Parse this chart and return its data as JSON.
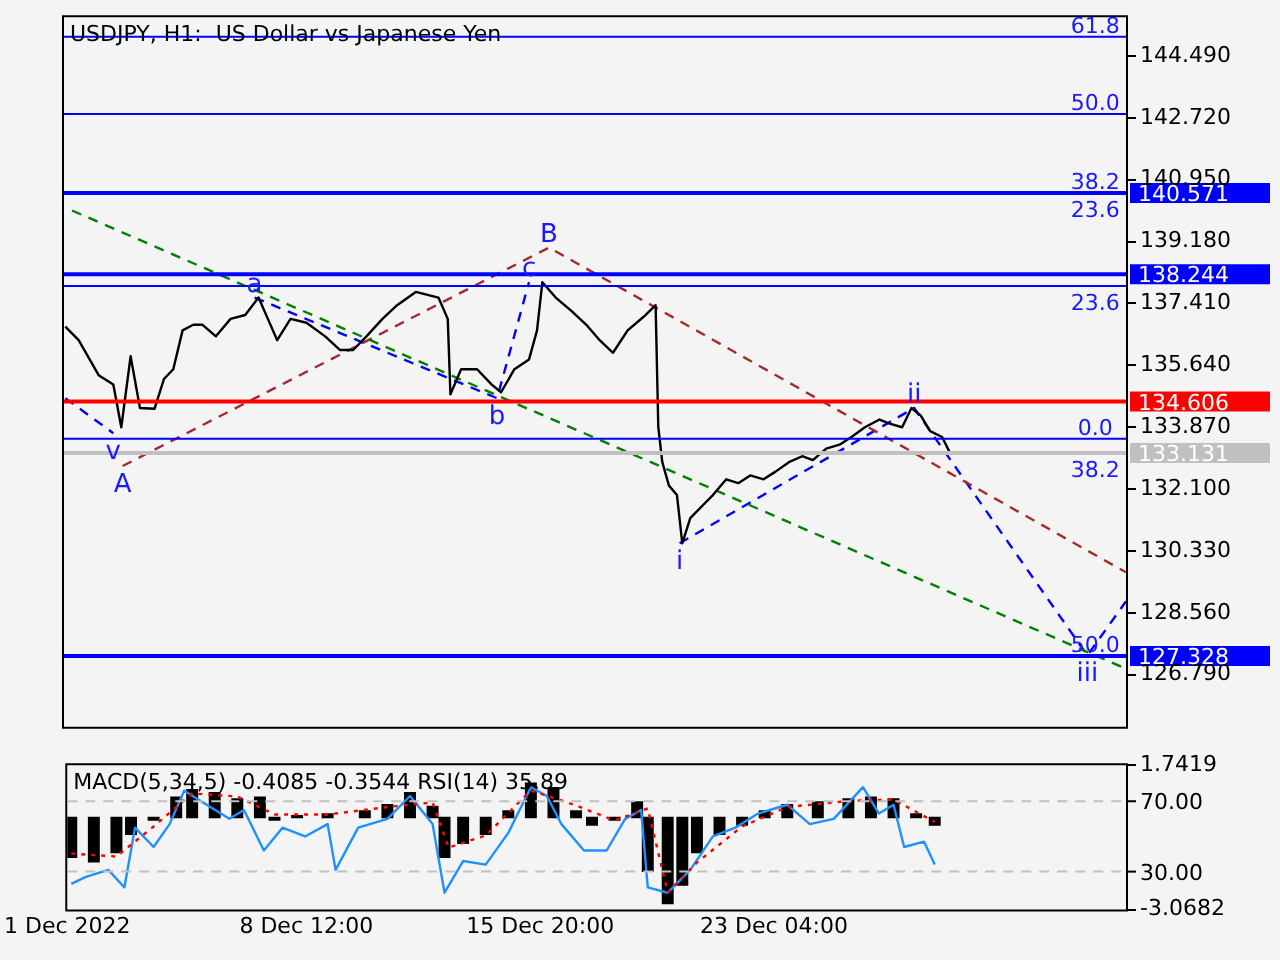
{
  "chart_data": [
    {
      "type": "line",
      "title": "USDJPY, H1:  US Dollar vs Japanese Yen",
      "xlim": [
        "2022-12-01T00:00",
        "2023-01-03T05:00"
      ],
      "ylim": [
        125.3,
        145.6
      ],
      "yticks": [
        {
          "value": 144.49,
          "label": "144.490"
        },
        {
          "value": 142.72,
          "label": "142.720"
        },
        {
          "value": 140.95,
          "label": "140.950"
        },
        {
          "value": 139.18,
          "label": "139.180"
        },
        {
          "value": 137.41,
          "label": "137.410"
        },
        {
          "value": 135.64,
          "label": "135.640"
        },
        {
          "value": 133.87,
          "label": "133.870"
        },
        {
          "value": 132.1,
          "label": "132.100"
        },
        {
          "value": 130.33,
          "label": "130.330"
        },
        {
          "value": 128.56,
          "label": "128.560"
        },
        {
          "value": 126.79,
          "label": "126.790"
        }
      ],
      "tick_labels": "y",
      "series": [
        {
          "color": "#000000",
          "x": [
            "2022-12-01T01:00",
            "2022-12-01T11:00",
            "2022-12-02T02:00",
            "2022-12-02T13:00",
            "2022-12-02T19:00",
            "2022-12-03T02:00",
            "2022-12-03T09:00",
            "2022-12-03T20:00",
            "2022-12-04T03:00",
            "2022-12-04T10:00",
            "2022-12-04T17:00",
            "2022-12-05T01:00",
            "2022-12-05T08:00",
            "2022-12-05T18:00",
            "2022-12-06T05:00",
            "2022-12-06T16:00",
            "2022-12-07T02:00",
            "2022-12-07T09:00",
            "2022-12-07T16:00",
            "2022-12-08T02:00",
            "2022-12-08T14:00",
            "2022-12-09T04:00",
            "2022-12-09T15:00",
            "2022-12-10T01:00",
            "2022-12-10T11:00",
            "2022-12-10T23:00",
            "2022-12-11T10:00",
            "2022-12-12T00:00",
            "2022-12-12T17:00",
            "2022-12-13T00:00",
            "2022-12-13T02:00",
            "2022-12-13T10:00",
            "2022-12-13T22:00",
            "2022-12-14T09:00",
            "2022-12-14T16:00",
            "2022-12-15T02:00",
            "2022-12-15T13:00",
            "2022-12-15T19:00",
            "2022-12-15T23:00",
            "2022-12-16T09:00",
            "2022-12-16T21:00",
            "2022-12-17T08:00",
            "2022-12-17T18:00",
            "2022-12-18T04:00",
            "2022-12-18T15:00",
            "2022-12-19T03:00",
            "2022-12-19T12:00",
            "2022-12-19T14:00",
            "2022-12-19T17:00",
            "2022-12-19T22:00",
            "2022-12-20T04:00",
            "2022-12-20T08:00",
            "2022-12-20T14:00",
            "2022-12-21T00:00",
            "2022-12-21T07:00",
            "2022-12-21T17:00",
            "2022-12-22T02:00",
            "2022-12-22T11:00",
            "2022-12-22T21:00",
            "2022-12-23T06:00",
            "2022-12-23T16:00",
            "2022-12-24T02:00",
            "2022-12-24T10:00",
            "2022-12-24T20:00",
            "2022-12-25T06:00",
            "2022-12-25T15:00",
            "2022-12-26T01:00",
            "2022-12-26T12:00",
            "2022-12-26T19:00",
            "2022-12-27T05:00",
            "2022-12-27T12:00",
            "2022-12-27T19:00",
            "2022-12-28T02:00",
            "2022-12-28T11:00",
            "2022-12-28T17:00"
          ],
          "values": [
            136.75,
            136.36,
            135.36,
            135.09,
            133.87,
            135.9,
            134.42,
            134.4,
            135.25,
            135.53,
            136.64,
            136.8,
            136.8,
            136.47,
            136.97,
            137.08,
            137.58,
            136.97,
            136.36,
            136.97,
            136.86,
            136.47,
            136.08,
            136.08,
            136.47,
            136.97,
            137.36,
            137.74,
            137.58,
            136.97,
            134.81,
            135.53,
            135.53,
            135.09,
            134.87,
            135.53,
            135.81,
            136.64,
            138.02,
            137.58,
            137.19,
            136.8,
            136.36,
            136.0,
            136.64,
            137.03,
            137.36,
            133.87,
            132.87,
            132.2,
            131.93,
            130.55,
            131.27,
            131.66,
            131.93,
            132.38,
            132.27,
            132.49,
            132.38,
            132.6,
            132.87,
            133.04,
            132.93,
            133.26,
            133.37,
            133.59,
            133.87,
            134.09,
            133.98,
            133.87,
            134.42,
            134.2,
            133.76,
            133.59,
            133.13
          ]
        },
        {
          "color": "#008000",
          "line_style": "dashed",
          "x": [
            "2022-12-01T06:00",
            "2023-01-03T05:00"
          ],
          "values": [
            140.07,
            126.96
          ]
        },
        {
          "color": "#a52a2a",
          "line_style": "dashed",
          "x": [
            "2022-12-02T20:00",
            "2022-12-16T04:00",
            "2023-01-03T05:00"
          ],
          "values": [
            132.76,
            139.01,
            129.72
          ]
        },
        {
          "color": "#0000ff",
          "line_style": "dashed",
          "x": [
            "2022-12-01T01:00",
            "2022-12-02T13:00",
            "2022-12-04T13:00",
            "2022-12-06T23:00",
            "2022-12-14T13:00",
            "2022-12-15T13:00",
            "2022-12-18T18:00",
            "2022-12-20T06:00",
            "2022-12-27T14:00",
            "2023-01-02T00:00",
            "2023-01-03T05:00"
          ],
          "values": [
            134.7,
            133.7,
            null,
            137.58,
            134.7,
            138.02,
            null,
            130.55,
            134.42,
            127.34,
            128.89
          ]
        }
      ],
      "ref_lines": [
        {
          "axis": "y",
          "value": 145.04,
          "color": "#0000ff"
        },
        {
          "axis": "y",
          "value": 142.83,
          "color": "#0000ff"
        },
        {
          "axis": "y",
          "value": 140.571,
          "label": "140.571",
          "color": "#0000ff"
        },
        {
          "axis": "y",
          "value": 138.244,
          "label": "138.244",
          "color": "#0000ff"
        },
        {
          "axis": "y",
          "value": 137.91,
          "color": "#0000ff"
        },
        {
          "axis": "y",
          "value": 134.606,
          "label": "134.606",
          "color": "#ff0000"
        },
        {
          "axis": "y",
          "value": 133.54,
          "color": "#0000ff"
        },
        {
          "axis": "y",
          "value": 133.131,
          "label": "133.131",
          "color": "#c0c0c0"
        },
        {
          "axis": "y",
          "value": 127.328,
          "label": "127.328",
          "color": "#0000ff"
        }
      ],
      "annotations": [
        {
          "text": "61.8",
          "x": "2023-01-02T06:00",
          "y": 145.04
        },
        {
          "text": "50.0",
          "x": "2023-01-02T06:00",
          "y": 142.83
        },
        {
          "text": "38.2",
          "x": "2023-01-02T06:00",
          "y": 140.571
        },
        {
          "text": "23.6",
          "x": "2023-01-02T06:00",
          "y": 140.571
        },
        {
          "text": "23.6",
          "x": "2023-01-02T06:00",
          "y": 137.91
        },
        {
          "text": "0.0",
          "x": "2023-01-02T06:00",
          "y": 133.54
        },
        {
          "text": "38.2",
          "x": "2023-01-02T06:00",
          "y": 133.131
        },
        {
          "text": "50.0",
          "x": "2023-01-02T06:00",
          "y": 127.328
        },
        {
          "text": "A",
          "x": "2022-12-02T20:00",
          "y": 132.76
        },
        {
          "text": "B",
          "x": "2022-12-16T04:00",
          "y": 139.01
        },
        {
          "text": "a",
          "x": "2022-12-06T23:00",
          "y": 137.58
        },
        {
          "text": "b",
          "x": "2022-12-14T13:00",
          "y": 134.7
        },
        {
          "text": "c",
          "x": "2022-12-15T13:00",
          "y": 138.02
        },
        {
          "text": "v",
          "x": "2022-12-02T13:00",
          "y": 133.7
        },
        {
          "text": "i",
          "x": "2022-12-20T06:00",
          "y": 130.55
        },
        {
          "text": "ii",
          "x": "2022-12-27T14:00",
          "y": 134.42
        },
        {
          "text": "iii",
          "x": "2023-01-02T00:00",
          "y": 127.34
        }
      ]
    },
    {
      "type": "bar",
      "title": "MACD(5,34,5) -0.4085 -0.3544 RSI(14) 35.89",
      "xlim": [
        "2022-12-01T00:00",
        "2023-01-03T05:00"
      ],
      "xticks": [
        {
          "value": "2022-12-01T00:00",
          "label": "1 Dec 2022"
        },
        {
          "value": "2022-12-08T12:00",
          "label": "8 Dec 12:00"
        },
        {
          "value": "2022-12-15T20:00",
          "label": "15 Dec 20:00"
        },
        {
          "value": "2022-12-23T04:00",
          "label": "23 Dec 04:00"
        }
      ],
      "ylim": [
        -3.0682,
        1.7419
      ],
      "yticks": [
        -3.0682,
        1.7419
      ],
      "y2lim": [
        8.4,
        90.5
      ],
      "y2ticks": [
        {
          "value": 70,
          "label": "70.00"
        },
        {
          "value": 30,
          "label": "30.00"
        }
      ],
      "series": [
        {
          "color": "#000000",
          "x": [
            "2022-12-01T03:00",
            "2022-12-01T20:00",
            "2022-12-02T13:00",
            "2022-12-03T00:00",
            "2022-12-03T17:00",
            "2022-12-04T10:00",
            "2022-12-04T22:00",
            "2022-12-05T15:00",
            "2022-12-06T08:00",
            "2022-12-07T01:00",
            "2022-12-07T12:00",
            "2022-12-08T05:00",
            "2022-12-09T04:00",
            "2022-12-10T08:00",
            "2022-12-11T01:00",
            "2022-12-11T18:00",
            "2022-12-12T11:00",
            "2022-12-12T20:00",
            "2022-12-13T10:00",
            "2022-12-14T03:00",
            "2022-12-14T20:00",
            "2022-12-15T13:00",
            "2022-12-16T06:00",
            "2022-12-16T23:00",
            "2022-12-17T11:00",
            "2022-12-18T04:00",
            "2022-12-18T21:00",
            "2022-12-19T05:00",
            "2022-12-19T20:00",
            "2022-12-20T07:00",
            "2022-12-20T18:00",
            "2022-12-21T11:00",
            "2022-12-22T04:00",
            "2022-12-22T21:00",
            "2022-12-23T14:00",
            "2022-12-24T13:00",
            "2022-12-25T12:00",
            "2022-12-26T05:00",
            "2022-12-26T22:00",
            "2022-12-27T15:00",
            "2022-12-28T05:00"
          ],
          "values": [
            -1.33,
            -1.48,
            -1.17,
            -0.56,
            -0.09,
            0.68,
            0.93,
            0.83,
            0.62,
            0.68,
            -0.09,
            0.06,
            0.12,
            0.22,
            0.43,
            0.83,
            0.37,
            -1.33,
            -0.86,
            -0.56,
            0.22,
            1.14,
            0.99,
            0.22,
            -0.25,
            -0.09,
            0.52,
            -1.79,
            -2.87,
            -2.25,
            -1.17,
            -0.56,
            -0.25,
            0.22,
            0.43,
            0.52,
            0.62,
            0.68,
            0.62,
            0.12,
            -0.25
          ]
        },
        {
          "type": "line",
          "color": "#ff0000",
          "line_style": "dotted",
          "x": [
            "2022-12-01T03:00",
            "2022-12-02T13:00",
            "2022-12-03T17:00",
            "2022-12-04T22:00",
            "2022-12-06T08:00",
            "2022-12-07T12:00",
            "2022-12-09T04:00",
            "2022-12-11T01:00",
            "2022-12-12T11:00",
            "2022-12-12T23:00",
            "2022-12-14T03:00",
            "2022-12-15T13:00",
            "2022-12-16T23:00",
            "2022-12-18T04:00",
            "2022-12-19T05:00",
            "2022-12-19T20:00",
            "2022-12-20T18:00",
            "2022-12-22T04:00",
            "2022-12-23T14:00",
            "2022-12-25T12:00",
            "2022-12-26T22:00",
            "2022-12-28T05:00"
          ],
          "values": [
            -1.2,
            -1.3,
            -0.3,
            0.8,
            0.7,
            0.1,
            0.1,
            0.35,
            0.5,
            -1.0,
            -0.6,
            0.9,
            0.4,
            -0.1,
            0.3,
            -2.5,
            -1.5,
            -0.3,
            0.35,
            0.55,
            0.6,
            -0.15
          ]
        },
        {
          "type": "line",
          "axis": "y2",
          "color": "#1e90ff",
          "x": [
            "2022-12-01T03:00",
            "2022-12-01T14:00",
            "2022-12-02T07:00",
            "2022-12-02T19:00",
            "2022-12-03T03:00",
            "2022-12-03T17:00",
            "2022-12-04T05:00",
            "2022-12-04T16:00",
            "2022-12-05T09:00",
            "2022-12-06T02:00",
            "2022-12-06T13:00",
            "2022-12-07T04:00",
            "2022-12-07T18:00",
            "2022-12-08T11:00",
            "2022-12-09T04:00",
            "2022-12-09T10:00",
            "2022-12-10T03:00",
            "2022-12-11T01:00",
            "2022-12-11T18:00",
            "2022-12-12T11:00",
            "2022-12-12T20:00",
            "2022-12-13T10:00",
            "2022-12-14T03:00",
            "2022-12-14T20:00",
            "2022-12-15T13:00",
            "2022-12-16T01:00",
            "2022-12-16T12:00",
            "2022-12-17T05:00",
            "2022-12-17T22:00",
            "2022-12-18T12:00",
            "2022-12-19T00:00",
            "2022-12-19T05:00",
            "2022-12-19T20:00",
            "2022-12-20T13:00",
            "2022-12-21T06:00",
            "2022-12-21T23:00",
            "2022-12-22T16:00",
            "2022-12-23T14:00",
            "2022-12-24T07:00",
            "2022-12-25T01:00",
            "2022-12-25T23:00",
            "2022-12-26T11:00",
            "2022-12-26T22:00",
            "2022-12-27T06:00",
            "2022-12-27T21:00",
            "2022-12-28T05:00"
          ],
          "values": [
            23,
            27,
            31,
            21,
            55,
            44,
            57,
            76,
            68,
            60,
            65,
            42,
            55,
            50,
            57,
            31,
            55,
            60,
            73,
            57,
            18,
            36,
            34,
            52,
            78,
            73,
            57,
            42,
            42,
            60,
            65,
            21,
            18,
            31,
            50,
            55,
            63,
            68,
            57,
            60,
            78,
            63,
            68,
            44,
            47,
            34
          ]
        }
      ],
      "ref_lines": [
        {
          "axis": "y2",
          "value": 70,
          "color": "#c0c0c0",
          "line_style": "dashed"
        },
        {
          "axis": "y2",
          "value": 30,
          "color": "#c0c0c0",
          "line_style": "dashed"
        }
      ]
    }
  ]
}
